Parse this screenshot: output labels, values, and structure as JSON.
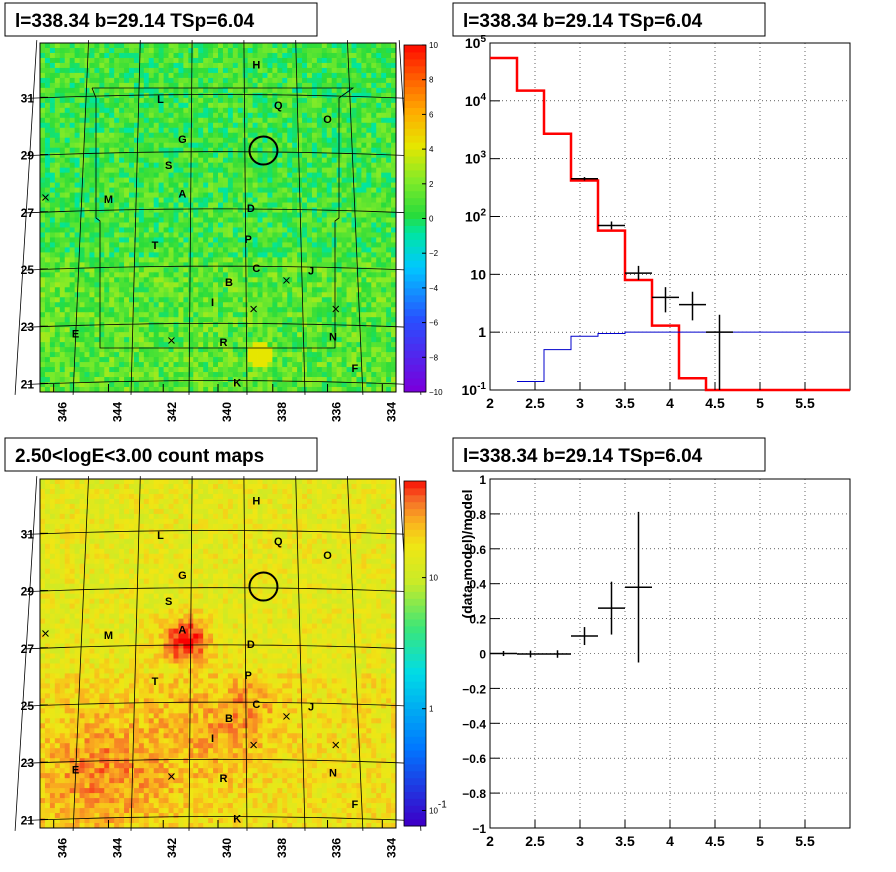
{
  "titles": {
    "map1": "l=338.34 b=29.14 TSp=6.04",
    "spec": "l=338.34 b=29.14 TSp=6.04",
    "map2": "2.50<logE<3.00 count maps",
    "resid": "l=338.34 b=29.14 TSp=6.04"
  },
  "colors": {
    "bg": "#ffffff",
    "red": "#ff0000",
    "blue": "#0000cc",
    "black": "#000000"
  },
  "chart_data": [
    {
      "type": "heatmap",
      "title": "l=338.34 b=29.14 TSp=6.04",
      "x_ticks": [
        "346",
        "344",
        "342",
        "340",
        "338",
        "336",
        "334"
      ],
      "y_ticks": [
        "21",
        "23",
        "25",
        "27",
        "29",
        "31"
      ],
      "colorbar_ticks": [
        "10",
        "8",
        "6",
        "4",
        "2",
        "0",
        "−2",
        "−4",
        "−6",
        "−8",
        "−10"
      ],
      "colorbar_range": [
        -10,
        10
      ],
      "source_labels": [
        {
          "label": "H",
          "l": 338.6,
          "b": 32.0
        },
        {
          "label": "L",
          "l": 342.1,
          "b": 30.8
        },
        {
          "label": "Q",
          "l": 337.8,
          "b": 30.6
        },
        {
          "label": "O",
          "l": 336.0,
          "b": 30.1
        },
        {
          "label": "G",
          "l": 341.3,
          "b": 29.4
        },
        {
          "label": "S",
          "l": 341.8,
          "b": 28.5
        },
        {
          "label": "M",
          "l": 344.0,
          "b": 27.3
        },
        {
          "label": "A",
          "l": 341.3,
          "b": 27.5
        },
        {
          "label": "D",
          "l": 338.8,
          "b": 27.0
        },
        {
          "label": "T",
          "l": 342.3,
          "b": 25.7
        },
        {
          "label": "P",
          "l": 338.9,
          "b": 25.9
        },
        {
          "label": "C",
          "l": 338.6,
          "b": 24.9
        },
        {
          "label": "J",
          "l": 336.6,
          "b": 24.8
        },
        {
          "label": "B",
          "l": 339.6,
          "b": 24.4
        },
        {
          "label": "I",
          "l": 340.2,
          "b": 23.7
        },
        {
          "label": "E",
          "l": 345.2,
          "b": 22.6
        },
        {
          "label": "N",
          "l": 335.8,
          "b": 22.5
        },
        {
          "label": "R",
          "l": 339.8,
          "b": 22.3
        },
        {
          "label": "F",
          "l": 335.0,
          "b": 21.4
        },
        {
          "label": "K",
          "l": 339.3,
          "b": 20.9
        }
      ],
      "crosses": [
        {
          "l": 346.3,
          "b": 27.5
        },
        {
          "l": 337.5,
          "b": 24.6
        },
        {
          "l": 335.7,
          "b": 23.6
        },
        {
          "l": 338.7,
          "b": 23.6
        },
        {
          "l": 341.7,
          "b": 22.5
        }
      ],
      "circle": {
        "l": 338.34,
        "b": 29.14
      }
    },
    {
      "type": "line",
      "title": "l=338.34 b=29.14 TSp=6.04",
      "x_ticks": [
        "2",
        "2.5",
        "3",
        "3.5",
        "4",
        "4.5",
        "5",
        "5.5"
      ],
      "y_ticks": [
        "10^-1",
        "1",
        "10",
        "10^2",
        "10^3",
        "10^4",
        "10^5"
      ],
      "xlim": [
        2,
        6
      ],
      "ylim": [
        0.1,
        100000
      ],
      "log_y": true,
      "grid": true,
      "series": [
        {
          "color": "#ff0000",
          "edges": [
            2.0,
            2.3,
            2.6,
            2.9,
            3.2,
            3.5,
            3.8,
            4.1,
            4.4,
            4.7,
            5.0,
            6.0
          ],
          "values": [
            55000,
            15000,
            2700,
            420,
            57,
            8,
            1.3,
            0.16,
            0.1,
            0.1,
            0.1
          ]
        },
        {
          "color": "#0000cc",
          "edges": [
            2.3,
            2.6,
            2.9,
            3.2,
            3.5,
            3.8,
            4.1,
            6.0
          ],
          "values": [
            0.14,
            0.5,
            0.85,
            0.95,
            1.0,
            1.0,
            1.0
          ]
        }
      ],
      "data_points": [
        {
          "x": 3.05,
          "xerr": 0.15,
          "y": 450,
          "ylo": 420,
          "yhi": 480
        },
        {
          "x": 3.35,
          "xerr": 0.15,
          "y": 70,
          "ylo": 60,
          "yhi": 82
        },
        {
          "x": 3.65,
          "xerr": 0.15,
          "y": 10.5,
          "ylo": 8,
          "yhi": 14
        },
        {
          "x": 3.95,
          "xerr": 0.15,
          "y": 4,
          "ylo": 2.2,
          "yhi": 6
        },
        {
          "x": 4.25,
          "xerr": 0.15,
          "y": 3,
          "ylo": 1.6,
          "yhi": 5
        },
        {
          "x": 4.55,
          "xerr": 0.15,
          "y": 1,
          "ylo": 0.1,
          "yhi": 2
        }
      ]
    },
    {
      "type": "heatmap",
      "title": "2.50<logE<3.00 count maps",
      "x_ticks": [
        "346",
        "344",
        "342",
        "340",
        "338",
        "336",
        "334"
      ],
      "y_ticks": [
        "21",
        "23",
        "25",
        "27",
        "29",
        "31"
      ],
      "colorbar_ticks": [
        "10",
        "1",
        "10^-1"
      ],
      "log_color": true
    },
    {
      "type": "scatter",
      "title": "l=338.34 b=29.14 TSp=6.04",
      "ylabel": "(data-model)/model",
      "x_ticks": [
        "2",
        "2.5",
        "3",
        "3.5",
        "4",
        "4.5",
        "5",
        "5.5"
      ],
      "y_ticks": [
        "1",
        "0.8",
        "0.6",
        "0.4",
        "0.2",
        "0",
        "−0.2",
        "−0.4",
        "−0.6",
        "−0.8",
        "−1"
      ],
      "xlim": [
        2,
        6
      ],
      "ylim": [
        -1,
        1
      ],
      "grid": true,
      "points": [
        {
          "x": 2.15,
          "xerr": 0.15,
          "y": 0,
          "yerr": 0.003
        },
        {
          "x": 2.45,
          "xerr": 0.15,
          "y": -0.003,
          "yerr": 0.008
        },
        {
          "x": 2.75,
          "xerr": 0.15,
          "y": -0.003,
          "yerr": 0.01
        },
        {
          "x": 3.05,
          "xerr": 0.15,
          "y": 0.1,
          "yerr": 0.04
        },
        {
          "x": 3.35,
          "xerr": 0.15,
          "y": 0.26,
          "yerr": 0.14
        },
        {
          "x": 3.65,
          "xerr": 0.15,
          "y": 0.38,
          "yerr": 0.42
        }
      ]
    }
  ]
}
